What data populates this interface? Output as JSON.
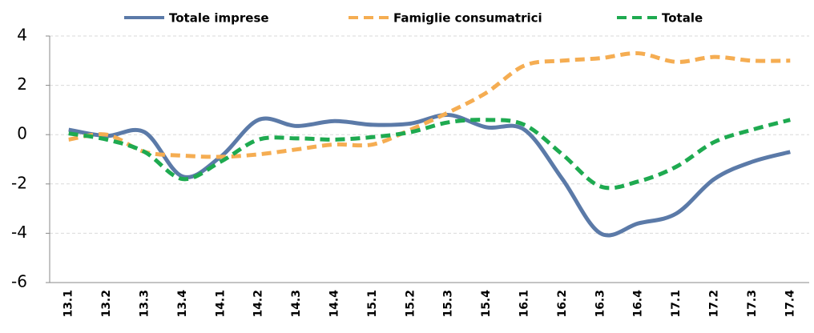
{
  "chart_data": {
    "type": "line",
    "categories": [
      "13.1",
      "13.2",
      "13.3",
      "13.4",
      "14.1",
      "14.2",
      "14.3",
      "14.4",
      "15.1",
      "15.2",
      "15.3",
      "15.4",
      "16.1",
      "16.2",
      "16.3",
      "16.4",
      "17.1",
      "17.2",
      "17.3",
      "17.4"
    ],
    "series": [
      {
        "name": "Totale imprese",
        "color": "#5b7aa8",
        "dash": "solid",
        "values": [
          0.2,
          -0.05,
          0.1,
          -1.7,
          -0.9,
          0.6,
          0.35,
          0.55,
          0.4,
          0.45,
          0.8,
          0.3,
          0.2,
          -1.8,
          -4.0,
          -3.6,
          -3.2,
          -1.8,
          -1.1,
          -0.7
        ]
      },
      {
        "name": "Famiglie consumatrici",
        "color": "#f5ad52",
        "dash": "dashed",
        "values": [
          -0.2,
          0.0,
          -0.7,
          -0.85,
          -0.9,
          -0.8,
          -0.6,
          -0.4,
          -0.4,
          0.2,
          0.9,
          1.7,
          2.8,
          3.0,
          3.1,
          3.3,
          2.95,
          3.15,
          3.0,
          3.0
        ]
      },
      {
        "name": "Totale",
        "color": "#1eaa50",
        "dash": "dashed",
        "values": [
          0.05,
          -0.2,
          -0.7,
          -1.8,
          -1.1,
          -0.2,
          -0.15,
          -0.2,
          -0.1,
          0.1,
          0.5,
          0.6,
          0.4,
          -0.8,
          -2.1,
          -1.9,
          -1.3,
          -0.3,
          0.2,
          0.6
        ]
      }
    ],
    "ylim": [
      -6,
      4
    ],
    "yticks": [
      -6,
      -4,
      -2,
      0,
      2,
      4
    ],
    "grid": true,
    "legend": "top"
  }
}
